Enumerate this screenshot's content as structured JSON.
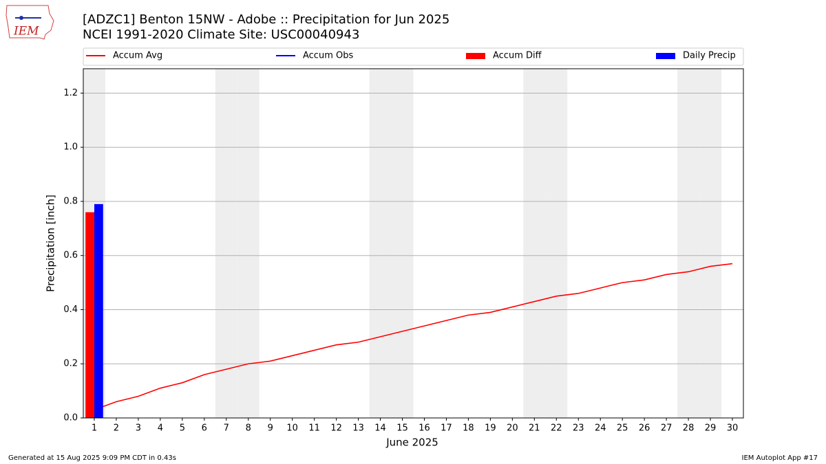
{
  "chart_data": {
    "type": "bar",
    "title": "[ADZC1] Benton 15NW - Adobe :: Precipitation for Jun 2025",
    "subtitle": "NCEI 1991-2020 Climate Site: USC00040943",
    "x_label": "June 2025",
    "y_label": "Precipitation [inch]",
    "categories": [
      "1",
      "2",
      "3",
      "4",
      "5",
      "6",
      "7",
      "8",
      "9",
      "10",
      "11",
      "12",
      "13",
      "14",
      "15",
      "16",
      "17",
      "18",
      "19",
      "20",
      "21",
      "22",
      "23",
      "24",
      "25",
      "26",
      "27",
      "28",
      "29",
      "30"
    ],
    "xlim": [
      0.5,
      30.5
    ],
    "ylim": [
      0,
      1.29
    ],
    "yticks": [
      {
        "value": 0,
        "label": "0.0"
      },
      {
        "value": 0.2,
        "label": "0.2"
      },
      {
        "value": 0.4,
        "label": "0.4"
      },
      {
        "value": 0.6,
        "label": "0.6"
      },
      {
        "value": 0.8,
        "label": "0.8"
      },
      {
        "value": 1.0,
        "label": "1.0"
      },
      {
        "value": 1.2,
        "label": "1.2"
      }
    ],
    "grid": true,
    "weekend_days": [
      1,
      7,
      8,
      14,
      15,
      21,
      22,
      28,
      29
    ],
    "series": [
      {
        "name": "Accum Avg",
        "type": "line",
        "color": "#ff0000",
        "values": [
          0.03,
          0.06,
          0.08,
          0.11,
          0.13,
          0.16,
          0.18,
          0.2,
          0.21,
          0.23,
          0.25,
          0.27,
          0.28,
          0.3,
          0.32,
          0.34,
          0.36,
          0.38,
          0.39,
          0.41,
          0.43,
          0.45,
          0.46,
          0.48,
          0.5,
          0.51,
          0.53,
          0.54,
          0.56,
          0.57
        ]
      },
      {
        "name": "Accum Obs",
        "type": "line",
        "color": "#0000ff",
        "values": [
          0.79,
          null,
          null,
          null,
          null,
          null,
          null,
          null,
          null,
          null,
          null,
          null,
          null,
          null,
          null,
          null,
          null,
          null,
          null,
          null,
          null,
          null,
          null,
          null,
          null,
          null,
          null,
          null,
          null,
          null
        ]
      },
      {
        "name": "Accum Diff",
        "type": "bar",
        "color": "#ff0000",
        "values": [
          0.76,
          null,
          null,
          null,
          null,
          null,
          null,
          null,
          null,
          null,
          null,
          null,
          null,
          null,
          null,
          null,
          null,
          null,
          null,
          null,
          null,
          null,
          null,
          null,
          null,
          null,
          null,
          null,
          null,
          null
        ]
      },
      {
        "name": "Daily Precip",
        "type": "bar",
        "color": "#0000ff",
        "values": [
          0.79,
          null,
          null,
          null,
          null,
          null,
          null,
          null,
          null,
          null,
          null,
          null,
          null,
          null,
          null,
          null,
          null,
          null,
          null,
          null,
          null,
          null,
          null,
          null,
          null,
          null,
          null,
          null,
          null,
          null
        ]
      }
    ]
  },
  "logo_text": "IEM",
  "footer_left": "Generated at 15 Aug 2025 9:09 PM CDT in 0.43s",
  "footer_right": "IEM Autoplot App #17"
}
